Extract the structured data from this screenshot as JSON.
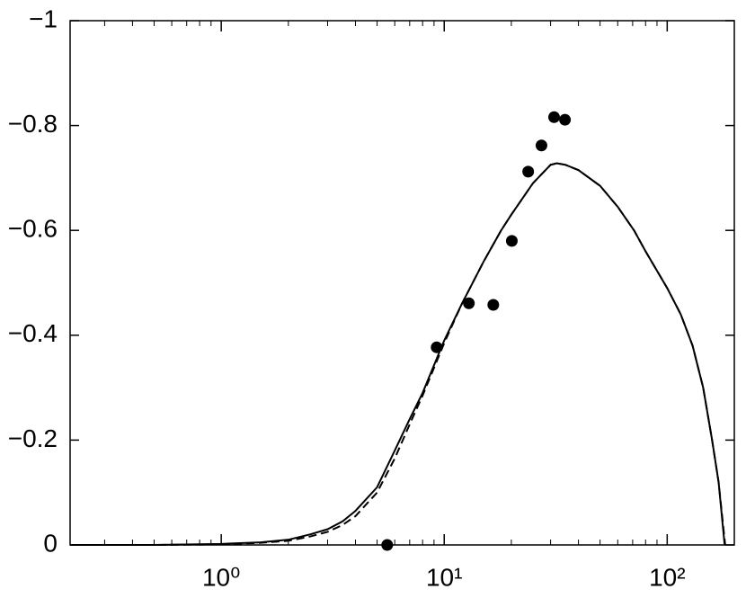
{
  "chart_data": {
    "type": "line",
    "xscale": "log",
    "xlim": [
      0.21,
      200
    ],
    "ylim": [
      0,
      -1
    ],
    "xticks": [
      {
        "value": 1,
        "label": "10⁰"
      },
      {
        "value": 10,
        "label": "10¹"
      },
      {
        "value": 100,
        "label": "10²"
      }
    ],
    "xminor": true,
    "yticks": [
      0,
      {
        "value": -0.2,
        "label": "−0.2"
      },
      {
        "value": -0.4,
        "label": "−0.4"
      },
      {
        "value": -0.6,
        "label": "−0.6"
      },
      {
        "value": -0.8,
        "label": "−0.8"
      },
      {
        "value": -1,
        "label": "−1"
      }
    ],
    "series": [
      {
        "type": "line",
        "color": "#000000",
        "dashed": false,
        "x": [
          0.21,
          0.5,
          1,
          1.5,
          2,
          2.5,
          3,
          3.5,
          4,
          5,
          6,
          7,
          8,
          10,
          12,
          15,
          18,
          20,
          25,
          30,
          32,
          35,
          40,
          50,
          60,
          71,
          80,
          100,
          115,
          130,
          145,
          159,
          170,
          181
        ],
        "values": [
          0,
          0,
          -0.002,
          -0.005,
          -0.01,
          -0.02,
          -0.03,
          -0.045,
          -0.065,
          -0.11,
          -0.18,
          -0.24,
          -0.29,
          -0.39,
          -0.46,
          -0.54,
          -0.6,
          -0.63,
          -0.69,
          -0.725,
          -0.728,
          -0.725,
          -0.715,
          -0.685,
          -0.645,
          -0.6,
          -0.56,
          -0.49,
          -0.44,
          -0.38,
          -0.3,
          -0.2,
          -0.12,
          0
        ]
      },
      {
        "type": "line",
        "color": "#000000",
        "dashed": true,
        "x": [
          0.21,
          0.5,
          1,
          1.5,
          2,
          2.5,
          3,
          3.5,
          4,
          5,
          6,
          7,
          8,
          10,
          12,
          15,
          18,
          20,
          25,
          30,
          32,
          35,
          40,
          50,
          60,
          71,
          80,
          100,
          115,
          130,
          145,
          159,
          170,
          182
        ],
        "values": [
          0,
          0,
          -0.001,
          -0.004,
          -0.008,
          -0.016,
          -0.025,
          -0.038,
          -0.055,
          -0.1,
          -0.165,
          -0.23,
          -0.285,
          -0.385,
          -0.46,
          -0.54,
          -0.6,
          -0.63,
          -0.69,
          -0.725,
          -0.728,
          -0.725,
          -0.715,
          -0.685,
          -0.645,
          -0.6,
          -0.56,
          -0.49,
          -0.44,
          -0.38,
          -0.3,
          -0.2,
          -0.12,
          0
        ]
      },
      {
        "type": "scatter",
        "color": "#000000",
        "x": [
          5.55,
          9.25,
          12.9,
          16.6,
          20.1,
          23.8,
          27.3,
          31.1,
          34.8
        ],
        "values": [
          0,
          -0.377,
          -0.461,
          -0.458,
          -0.58,
          -0.712,
          -0.762,
          -0.816,
          -0.811
        ]
      }
    ]
  }
}
